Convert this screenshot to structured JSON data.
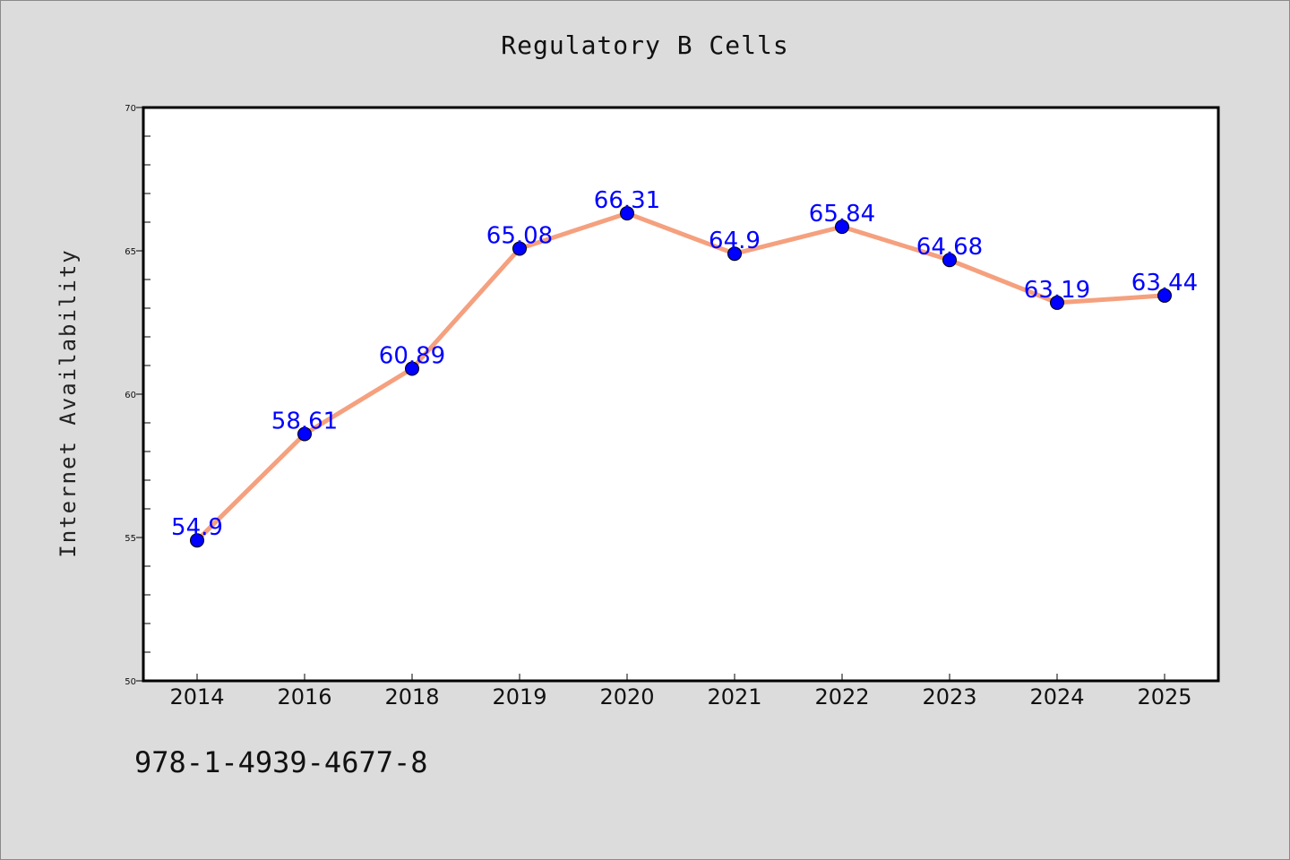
{
  "chart_data": {
    "type": "line",
    "title": "Regulatory B Cells",
    "xlabel": "",
    "ylabel": "Internet Availability",
    "categories": [
      "2014",
      "2016",
      "2018",
      "2019",
      "2020",
      "2021",
      "2022",
      "2023",
      "2024",
      "2025"
    ],
    "series": [
      {
        "values": [
          54.9,
          58.61,
          60.89,
          65.08,
          66.31,
          64.9,
          65.84,
          64.68,
          63.19,
          63.44
        ]
      }
    ],
    "data_labels": [
      "54.9",
      "58.61",
      "60.89",
      "65.08",
      "66.31",
      "64.9",
      "65.84",
      "64.68",
      "63.19",
      "63.44"
    ],
    "ylim": [
      50,
      70
    ],
    "y_ticks": [
      "50",
      "55",
      "60",
      "65",
      "70"
    ],
    "grid": false,
    "legend": "none",
    "colors": {
      "line": "#f5a07e",
      "marker": "#0000ff",
      "data_label": "#0000ff",
      "plot_background": "#ffffff",
      "page_background": "#dcdcdc"
    }
  },
  "footer": {
    "code": "978-1-4939-4677-8"
  }
}
